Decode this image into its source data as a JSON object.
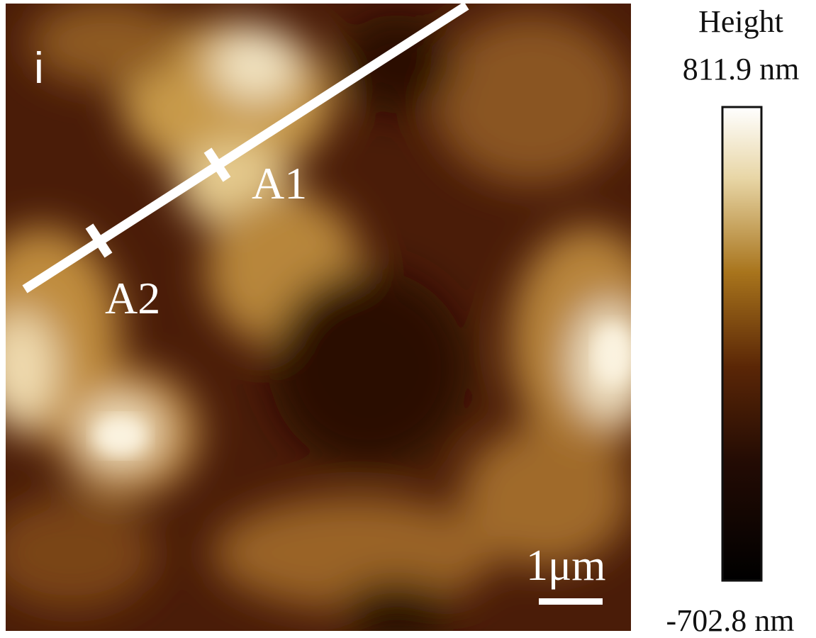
{
  "image": {
    "panel_label": "i",
    "markers": [
      "A1",
      "A2"
    ],
    "scale_bar": "1μm"
  },
  "colorbar": {
    "title": "Height",
    "max_label": "811.9 nm",
    "min_label": "-702.8 nm"
  }
}
